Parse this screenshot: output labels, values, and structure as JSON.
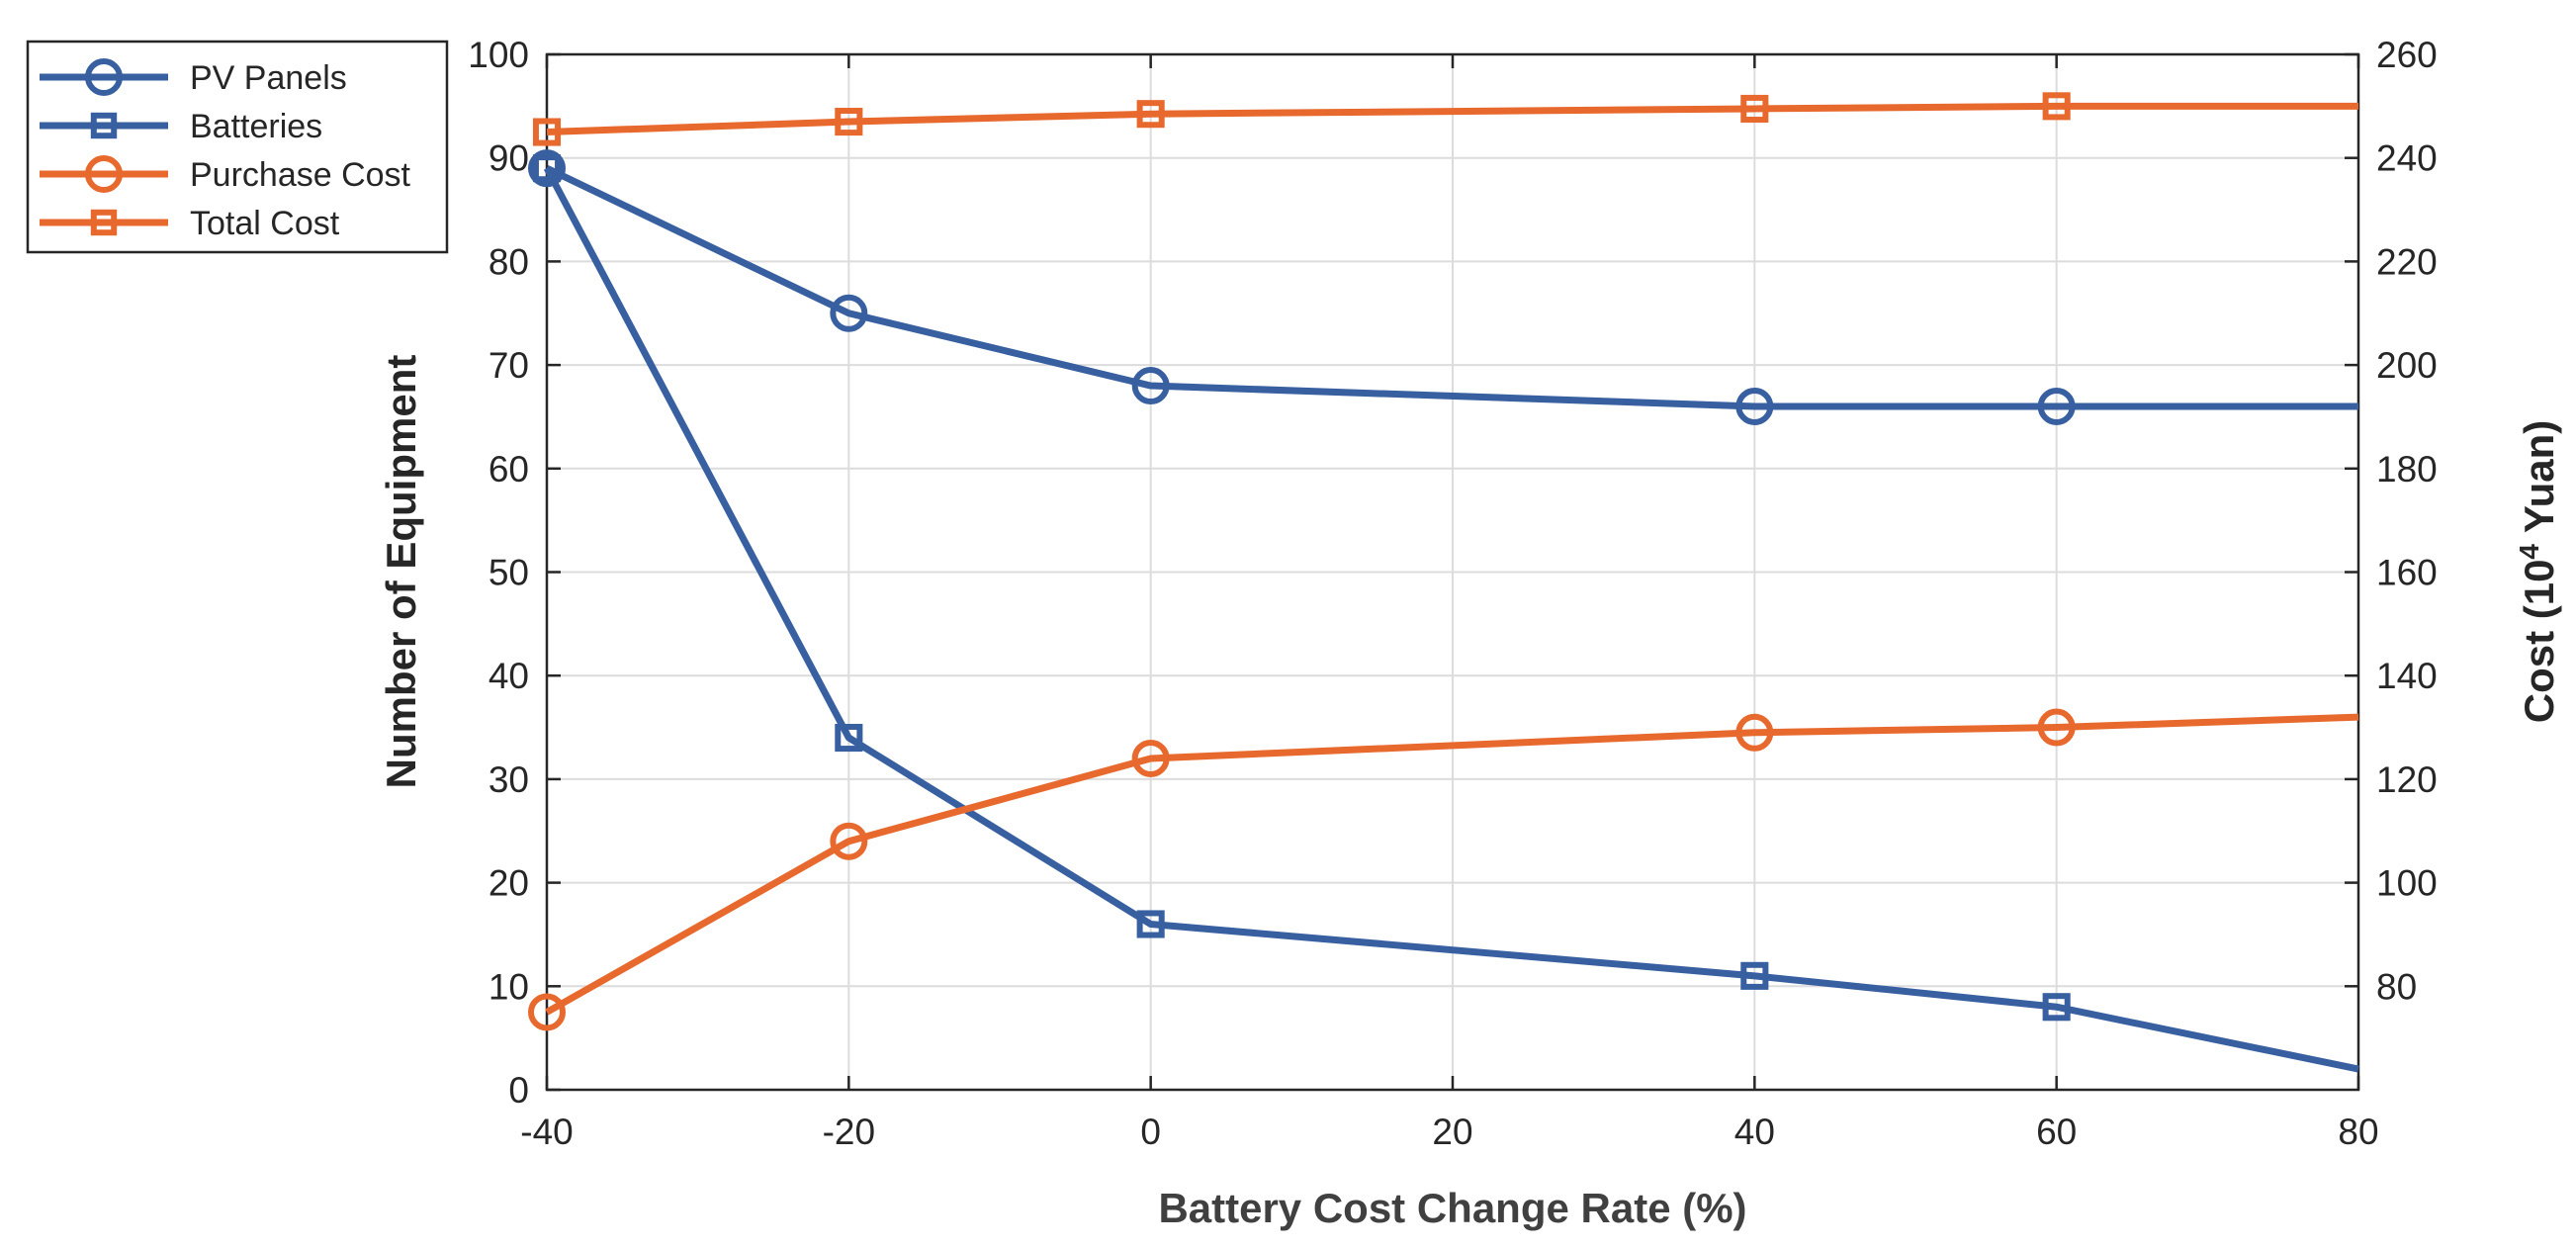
{
  "chart_data": {
    "type": "line",
    "xlabel": "Battery Cost Change Rate (%)",
    "ylabel_left": "Number of Equipment",
    "ylabel_right_prefix": "Cost (10",
    "ylabel_right_sup": "4",
    "ylabel_right_suffix": " Yuan)",
    "xlim": [
      -40,
      80
    ],
    "ylim_left": [
      0,
      100
    ],
    "ylim_right": [
      60,
      260
    ],
    "x_ticks": [
      -40,
      -20,
      0,
      20,
      40,
      60,
      80
    ],
    "y_left_ticks": [
      0,
      10,
      20,
      30,
      40,
      50,
      60,
      70,
      80,
      90,
      100
    ],
    "y_right_ticks": [
      80,
      100,
      120,
      140,
      160,
      180,
      200,
      220,
      240,
      260
    ],
    "grid": true,
    "legend_position": "top-left",
    "colors": {
      "blue": "#3860a0",
      "orange": "#e8692e"
    },
    "series": [
      {
        "name": "PV Panels",
        "axis": "left",
        "marker": "circle",
        "color": "#3860a0",
        "x": [
          -40,
          -20,
          0,
          40,
          60,
          80
        ],
        "y": [
          89,
          75,
          68,
          66,
          66,
          66
        ],
        "marker_x": [
          -40,
          -20,
          0,
          40,
          60
        ]
      },
      {
        "name": "Batteries",
        "axis": "left",
        "marker": "square",
        "color": "#3860a0",
        "x": [
          -40,
          -20,
          0,
          40,
          60,
          80
        ],
        "y": [
          89,
          34,
          16,
          11,
          8,
          2
        ],
        "marker_x": [
          -40,
          -20,
          0,
          40,
          60
        ]
      },
      {
        "name": "Purchase Cost",
        "axis": "right",
        "marker": "circle",
        "color": "#e8692e",
        "x": [
          -40,
          -20,
          0,
          40,
          60,
          80
        ],
        "y": [
          75,
          108,
          124,
          129,
          130,
          132
        ],
        "marker_x": [
          -40,
          -20,
          0,
          40,
          60
        ]
      },
      {
        "name": "Total Cost",
        "axis": "right",
        "marker": "square",
        "color": "#e8692e",
        "x": [
          -40,
          -20,
          0,
          40,
          60,
          80
        ],
        "y": [
          245,
          247,
          248.5,
          249.5,
          250,
          250
        ],
        "marker_x": [
          -40,
          -20,
          0,
          40,
          60
        ]
      }
    ]
  }
}
